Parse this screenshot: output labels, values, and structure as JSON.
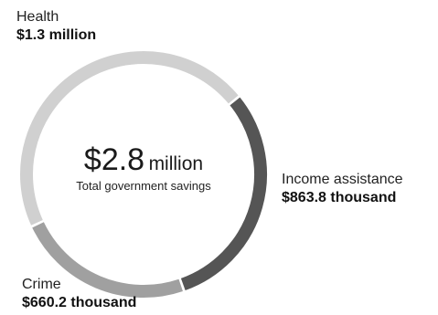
{
  "chart_data": {
    "type": "pie",
    "donut": true,
    "total": {
      "value": "$2.8",
      "unit": "million",
      "caption": "Total government savings"
    },
    "slices": [
      {
        "name": "Health",
        "value_label": "$1.3 million",
        "value": 1300000,
        "color": "#d0d0d0"
      },
      {
        "name": "Income assistance",
        "value_label": "$863.8 thousand",
        "value": 863800,
        "color": "#555555"
      },
      {
        "name": "Crime",
        "value_label": "$660.2 thousand",
        "value": 660200,
        "color": "#a0a0a0"
      }
    ]
  }
}
